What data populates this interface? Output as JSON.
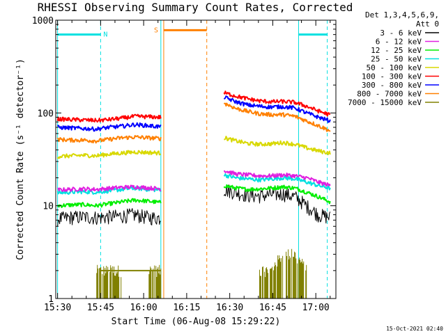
{
  "chart_data": {
    "type": "line",
    "title": "RHESSI Observing Summary Count Rates, Corrected",
    "xlabel": "Start Time (06-Aug-08 15:29:22)",
    "ylabel": "Corrected Count Rate (s⁻¹ detector⁻¹)",
    "yscale": "log",
    "ylim": [
      1,
      1000
    ],
    "xlim": [
      "15:29:22",
      "17:07:00"
    ],
    "x_ticks": [
      "15:30",
      "15:45",
      "16:00",
      "16:15",
      "16:30",
      "16:45",
      "17:00"
    ],
    "y_ticks": [
      "1",
      "10",
      "100",
      "1000"
    ],
    "legend": {
      "placement": "right",
      "header": [
        "Det 1,3,4,5,6,9,",
        "Att 0"
      ]
    },
    "series": [
      {
        "name": "3 - 6 keV",
        "color": "#000000",
        "seg1": [
          7.2,
          7.5,
          7.6,
          7.5,
          7.6,
          7.8,
          8.0,
          7.5,
          7.4
        ],
        "seg2": [
          15.0,
          14.0,
          13.0,
          12.8,
          13.2,
          13.5,
          12.5,
          10.0,
          8.0,
          7.5
        ]
      },
      {
        "name": "6 - 12 keV",
        "color": "#e020e0",
        "seg1": [
          14.8,
          15.0,
          15.2,
          15.0,
          15.4,
          15.8,
          16.0,
          15.6,
          15.2
        ],
        "seg2": [
          24.0,
          22.0,
          21.5,
          21.0,
          21.0,
          21.5,
          21.0,
          20.0,
          18.0,
          16.5
        ]
      },
      {
        "name": "12 - 25 keV",
        "color": "#00ee00",
        "seg1": [
          10.0,
          10.2,
          10.3,
          10.0,
          10.5,
          11.0,
          11.5,
          11.2,
          10.8
        ],
        "seg2": [
          16.5,
          15.5,
          15.0,
          15.2,
          15.5,
          16.0,
          15.5,
          14.0,
          12.5,
          11.0
        ]
      },
      {
        "name": "25 - 50 keV",
        "color": "#00e0e0",
        "seg1": [
          13.8,
          14.0,
          14.2,
          14.0,
          14.5,
          15.0,
          15.5,
          15.0,
          14.8
        ],
        "seg2": [
          21.5,
          20.0,
          19.5,
          19.0,
          19.5,
          20.0,
          19.5,
          18.0,
          16.5,
          15.5
        ]
      },
      {
        "name": "50 - 100 keV",
        "color": "#d8d800",
        "seg1": [
          34.0,
          34.5,
          35.0,
          34.5,
          36.0,
          37.0,
          38.0,
          37.5,
          37.0
        ],
        "seg2": [
          54.0,
          50.0,
          47.0,
          46.0,
          46.5,
          48.0,
          46.0,
          42.0,
          39.0,
          37.0
        ]
      },
      {
        "name": "100 - 300 keV",
        "color": "#ff0000",
        "seg1": [
          86.0,
          85.0,
          84.0,
          83.0,
          85.0,
          88.0,
          92.0,
          91.0,
          90.0
        ],
        "seg2": [
          165.0,
          152.0,
          142.0,
          135.0,
          132.0,
          133.0,
          130.0,
          118.0,
          105.0,
          95.0
        ]
      },
      {
        "name": "300 - 800 keV",
        "color": "#0000ff",
        "seg1": [
          70.0,
          69.0,
          68.0,
          67.0,
          70.0,
          72.0,
          75.0,
          73.0,
          71.0
        ],
        "seg2": [
          148.0,
          132.0,
          122.0,
          118.0,
          116.0,
          117.0,
          113.0,
          100.0,
          90.0,
          82.0
        ]
      },
      {
        "name": "800 - 7000 keV",
        "color": "#ff8000",
        "seg1": [
          52.0,
          51.0,
          51.0,
          50.0,
          52.0,
          54.0,
          55.0,
          54.0,
          53.0
        ],
        "seg2": [
          128.0,
          112.0,
          104.0,
          98.0,
          96.0,
          96.0,
          92.0,
          82.0,
          73.0,
          64.0
        ]
      },
      {
        "name": "7000 - 15000 keV",
        "color": "#808000",
        "seg1": [
          1.0,
          1.0,
          1.0,
          2.0,
          2.0,
          2.0,
          1.0,
          2.0,
          2.0
        ],
        "seg2": [
          1.0,
          1.0,
          1.0,
          2.0,
          2.0,
          3.0,
          3.0,
          2.0,
          1.0,
          1.0
        ]
      }
    ],
    "data_segments": [
      {
        "start": "15:30",
        "end": "16:06"
      },
      {
        "start": "16:28",
        "end": "17:05"
      }
    ],
    "flag_bars": [
      {
        "label": "N",
        "color": "#00e0e0",
        "start": "15:30",
        "end": "15:45",
        "y": 700
      },
      {
        "label": "",
        "color": "#00e0e0",
        "start": "16:54",
        "end": "17:04",
        "y": 700
      },
      {
        "label": "S",
        "color": "#ff8000",
        "start": "16:07",
        "end": "16:22",
        "y": 780
      }
    ],
    "vertical_lines": [
      {
        "time": "15:30",
        "color": "#00e0e0",
        "style": "solid"
      },
      {
        "time": "15:45",
        "color": "#00e0e0",
        "style": "dashed"
      },
      {
        "time": "16:06",
        "color": "#00e0e0",
        "style": "solid"
      },
      {
        "time": "16:07",
        "color": "#ff8000",
        "style": "solid"
      },
      {
        "time": "16:22",
        "color": "#ff8000",
        "style": "dashed"
      },
      {
        "time": "16:54",
        "color": "#00e0e0",
        "style": "solid"
      },
      {
        "time": "17:04",
        "color": "#00e0e0",
        "style": "dashed"
      }
    ],
    "timestamp": "15-Oct-2021 02:40"
  }
}
